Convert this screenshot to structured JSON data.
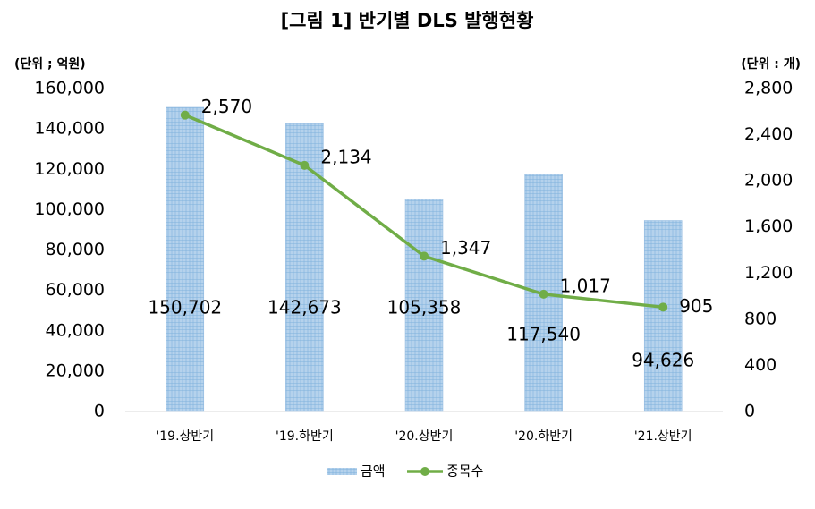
{
  "chart_data": {
    "type": "bar-line",
    "title": "[그림 1] 반기별 DLS 발행현황",
    "y_label": "(단위 ; 억원)",
    "y2_label": "(단위 : 개)",
    "categories": [
      "'19.상반기",
      "'19.하반기",
      "'20.상반기",
      "'20.하반기",
      "'21.상반기"
    ],
    "series": [
      {
        "name": "금액",
        "type": "bar",
        "color": "#9dc3e6",
        "values": [
          150702,
          142673,
          105358,
          117540,
          94626
        ],
        "value_labels": [
          "150,702",
          "142,673",
          "105,358",
          "117,540",
          "94,626"
        ]
      },
      {
        "name": "종목수",
        "type": "line",
        "axis": "y2",
        "color": "#70ad47",
        "values": [
          2570,
          2134,
          1347,
          1017,
          905
        ],
        "value_labels": [
          "2,570",
          "2,134",
          "1,347",
          "1,017",
          "905"
        ]
      }
    ],
    "ylim": [
      0,
      160000
    ],
    "yticks": [
      0,
      {
        "value": 20000,
        "label": "20,000"
      },
      {
        "value": 40000,
        "label": "40,000"
      },
      {
        "value": 60000,
        "label": "60,000"
      },
      {
        "value": 80000,
        "label": "80,000"
      },
      {
        "value": 100000,
        "label": "100,000"
      },
      {
        "value": 120000,
        "label": "120,000"
      },
      {
        "value": 140000,
        "label": "140,000"
      },
      {
        "value": 160000,
        "label": "160,000"
      }
    ],
    "y2lim": [
      0,
      2800
    ],
    "y2ticks": [
      0,
      400,
      800,
      {
        "value": 1200,
        "label": "1,200"
      },
      {
        "value": 1600,
        "label": "1,600"
      },
      {
        "value": 2000,
        "label": "2,000"
      },
      {
        "value": 2400,
        "label": "2,400"
      },
      {
        "value": 2800,
        "label": "2,800"
      }
    ],
    "grid": false,
    "legend": "bottom"
  }
}
